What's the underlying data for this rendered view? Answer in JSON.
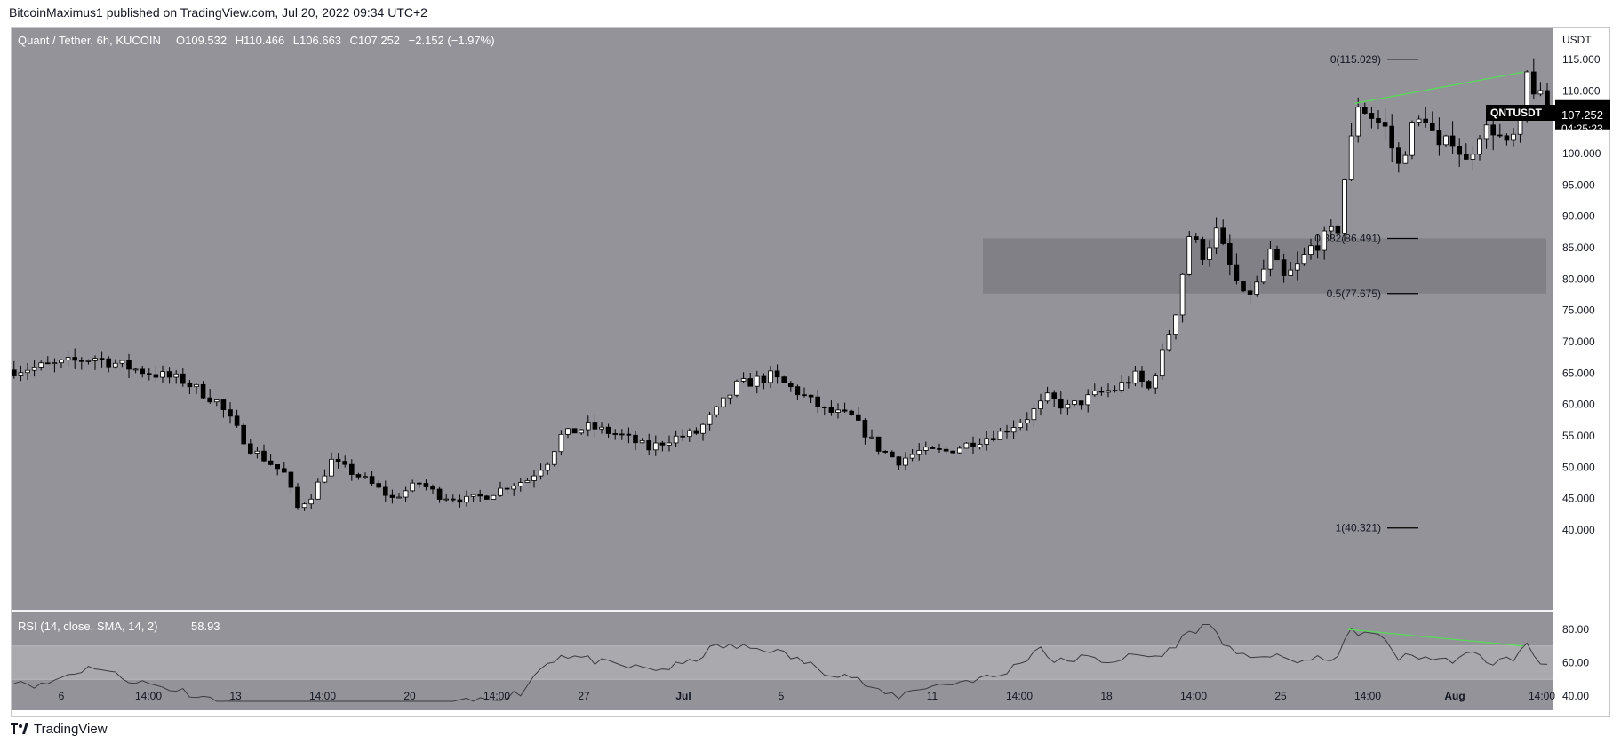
{
  "header": {
    "publisher_line": "BitcoinMaximus1 published on TradingView.com, Jul 20, 2022 09:34 UTC+2"
  },
  "footer": {
    "brand": "TradingView",
    "logo_icon": "tradingview-logo-icon"
  },
  "colors": {
    "pane_bg": "#939399",
    "frame_bg": "#ffffff",
    "axis_text": "#131722",
    "zone": "#7e7e84",
    "rsi_band": "#a9a9ae",
    "divergence": "#5cd65c",
    "price_tag_bg": "#000000"
  },
  "chart_data": [
    {
      "type": "candlestick",
      "legend": {
        "symbol": "Quant / Tether, 6h, KUCOIN",
        "o_label": "O",
        "o_value": "109.532",
        "h_label": "H",
        "h_value": "110.466",
        "l_label": "L",
        "l_value": "106.663",
        "c_label": "C",
        "c_value": "107.252",
        "change": "−2.152 (−1.97%)"
      },
      "y_axis": {
        "unit_label": "USDT",
        "range": [
          37,
          120
        ],
        "ticks": [
          115,
          110,
          105,
          100,
          95,
          90,
          85,
          80,
          75,
          70,
          65,
          60,
          55,
          50,
          45,
          40
        ],
        "tick_labels": [
          "115.000",
          "110.000",
          "105.000",
          "100.000",
          "95.000",
          "90.000",
          "85.000",
          "80.000",
          "75.000",
          "70.000",
          "65.000",
          "60.000",
          "55.000",
          "50.000",
          "45.000",
          "40.000"
        ]
      },
      "x_axis": {
        "ticks": [
          "6",
          "14:00",
          "13",
          "14:00",
          "20",
          "14:00",
          "27",
          "Jul",
          "5",
          "11",
          "14:00",
          "18",
          "14:00",
          "25",
          "14:00",
          "Aug",
          "14:00"
        ],
        "bold_ticks": [
          "Jul",
          "Aug"
        ]
      },
      "price_tag": {
        "symbol": "QNTUSDT",
        "price": "107.252",
        "countdown": "04:25:23",
        "value": 107.252
      },
      "fib_levels": [
        {
          "label": "0(115.029)",
          "value": 115.029
        },
        {
          "label": "0.382(86.491)",
          "value": 86.491
        },
        {
          "label": "0.5(77.675)",
          "value": 77.675
        },
        {
          "label": "1(40.321)",
          "value": 40.321
        }
      ],
      "support_zone": {
        "from": 77.675,
        "to": 86.491
      },
      "divergence_line_price": {
        "from": 108,
        "to": 113,
        "color": "#5cd65c"
      },
      "anchors": [
        [
          0,
          65.5
        ],
        [
          6,
          66.3
        ],
        [
          12,
          67.5
        ],
        [
          18,
          65.6
        ],
        [
          25,
          63.8
        ],
        [
          30,
          60.5
        ],
        [
          35,
          53.0
        ],
        [
          40,
          49.0
        ],
        [
          42,
          43.5
        ],
        [
          44,
          45.5
        ],
        [
          47,
          51.0
        ],
        [
          52,
          48.0
        ],
        [
          56,
          45.0
        ],
        [
          60,
          47.5
        ],
        [
          63,
          45.5
        ],
        [
          67,
          44.8
        ],
        [
          70,
          45.5
        ],
        [
          73,
          47.0
        ],
        [
          76,
          48.0
        ],
        [
          79,
          51.0
        ],
        [
          81,
          55.0
        ],
        [
          85,
          56.5
        ],
        [
          90,
          55.0
        ],
        [
          94,
          53.0
        ],
        [
          97,
          54.5
        ],
        [
          101,
          55.5
        ],
        [
          104,
          59.0
        ],
        [
          107,
          63.0
        ],
        [
          112,
          64.5
        ],
        [
          116,
          62.0
        ],
        [
          120,
          59.0
        ],
        [
          124,
          58.0
        ],
        [
          128,
          53.0
        ],
        [
          131,
          51.0
        ],
        [
          134,
          52.5
        ],
        [
          138,
          52.5
        ],
        [
          142,
          54.0
        ],
        [
          146,
          55.5
        ],
        [
          150,
          58.0
        ],
        [
          153,
          61.0
        ],
        [
          156,
          59.5
        ],
        [
          160,
          61.5
        ],
        [
          163,
          62.5
        ],
        [
          166,
          64.5
        ],
        [
          168,
          62.5
        ],
        [
          170,
          68.0
        ],
        [
          172,
          75.0
        ],
        [
          174,
          87.0
        ],
        [
          176,
          84.0
        ],
        [
          178,
          87.5
        ],
        [
          180,
          82.0
        ],
        [
          182,
          77.0
        ],
        [
          184,
          79.0
        ],
        [
          186,
          84.0
        ],
        [
          188,
          80.0
        ],
        [
          190,
          82.0
        ],
        [
          192,
          85.0
        ],
        [
          194,
          86.5
        ],
        [
          196,
          88.0
        ],
        [
          197,
          96.0
        ],
        [
          199,
          108.0
        ],
        [
          201,
          106.0
        ],
        [
          203,
          104.0
        ],
        [
          205,
          98.0
        ],
        [
          207,
          104.0
        ],
        [
          209,
          106.0
        ],
        [
          211,
          100.5
        ],
        [
          213,
          102.5
        ],
        [
          215,
          98.5
        ],
        [
          217,
          103.5
        ],
        [
          219,
          104.0
        ],
        [
          221,
          101.0
        ],
        [
          223,
          104.0
        ],
        [
          224,
          112.5
        ],
        [
          226,
          108.5
        ],
        [
          227,
          107.25
        ]
      ],
      "candles_generated_from_anchors": true
    },
    {
      "type": "line",
      "legend": {
        "title": "RSI (14, close, SMA, 14, 2)",
        "value": "58.93"
      },
      "y_axis": {
        "range": [
          30,
          86
        ],
        "ticks": [
          80,
          60,
          40
        ],
        "tick_labels": [
          "80.00",
          "60.00",
          "40.00"
        ]
      },
      "band": {
        "from": 50,
        "to": 70
      },
      "series": [
        {
          "name": "RSI",
          "anchors": [
            [
              0,
              50
            ],
            [
              4,
              46
            ],
            [
              8,
              53
            ],
            [
              12,
              58
            ],
            [
              16,
              51
            ],
            [
              20,
              47
            ],
            [
              25,
              43
            ],
            [
              30,
              37
            ],
            [
              35,
              32
            ],
            [
              40,
              28
            ],
            [
              42,
              26
            ],
            [
              46,
              31
            ],
            [
              50,
              30
            ],
            [
              55,
              31
            ],
            [
              60,
              34
            ],
            [
              65,
              35
            ],
            [
              70,
              38
            ],
            [
              75,
              42
            ],
            [
              78,
              57
            ],
            [
              81,
              65
            ],
            [
              84,
              63
            ],
            [
              88,
              59
            ],
            [
              92,
              57
            ],
            [
              96,
              56
            ],
            [
              100,
              60
            ],
            [
              104,
              70
            ],
            [
              108,
              69
            ],
            [
              112,
              68
            ],
            [
              116,
              62
            ],
            [
              120,
              55
            ],
            [
              124,
              52
            ],
            [
              128,
              42
            ],
            [
              131,
              40
            ],
            [
              134,
              45
            ],
            [
              138,
              47
            ],
            [
              142,
              50
            ],
            [
              146,
              52
            ],
            [
              150,
              63
            ],
            [
              152,
              70
            ],
            [
              154,
              60
            ],
            [
              158,
              63
            ],
            [
              162,
              61
            ],
            [
              166,
              64
            ],
            [
              170,
              64
            ],
            [
              173,
              75
            ],
            [
              175,
              80
            ],
            [
              177,
              83
            ],
            [
              179,
              73
            ],
            [
              181,
              63
            ],
            [
              184,
              65
            ],
            [
              188,
              62
            ],
            [
              192,
              61
            ],
            [
              196,
              64
            ],
            [
              198,
              79
            ],
            [
              200,
              78
            ],
            [
              203,
              74
            ],
            [
              205,
              63
            ],
            [
              208,
              64
            ],
            [
              212,
              61
            ],
            [
              216,
              65
            ],
            [
              219,
              60
            ],
            [
              222,
              63
            ],
            [
              224,
              70
            ],
            [
              226,
              60
            ],
            [
              227,
              59
            ]
          ]
        }
      ],
      "divergence_line_rsi": {
        "from": 80,
        "to": 70,
        "color": "#5cd65c"
      },
      "overbought_highlight": "segments above 70 drawn darker"
    }
  ]
}
